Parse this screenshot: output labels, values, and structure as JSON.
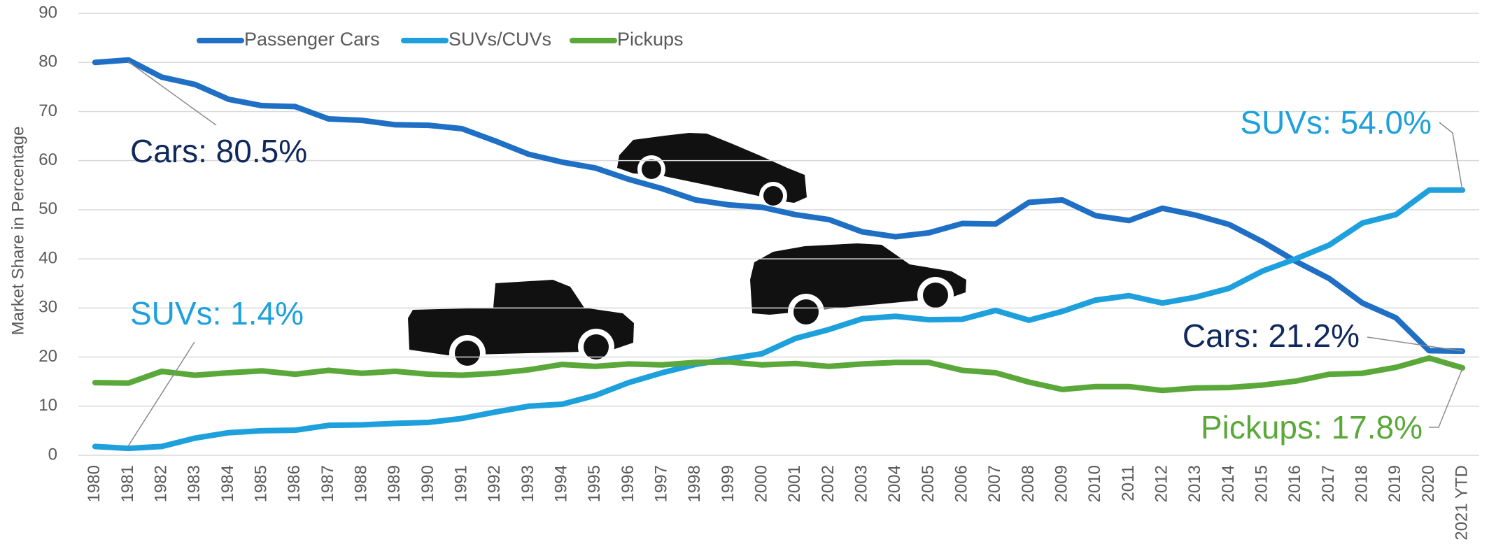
{
  "chart_data": {
    "type": "line",
    "y_label": "Market Share in Percentage",
    "categories": [
      "1980",
      "1981",
      "1982",
      "1983",
      "1984",
      "1985",
      "1986",
      "1987",
      "1988",
      "1989",
      "1990",
      "1991",
      "1992",
      "1993",
      "1994",
      "1995",
      "1996",
      "1997",
      "1998",
      "1999",
      "2000",
      "2001",
      "2002",
      "2003",
      "2004",
      "2005",
      "2006",
      "2007",
      "2008",
      "2009",
      "2010",
      "2011",
      "2012",
      "2013",
      "2014",
      "2015",
      "2016",
      "2017",
      "2018",
      "2019",
      "2020",
      "2021 YTD"
    ],
    "series": [
      {
        "name": "Passenger Cars",
        "color": "#1f6fc5",
        "values": [
          80,
          80.5,
          77,
          75.5,
          72.5,
          71.2,
          71,
          68.5,
          68.2,
          67.3,
          67.2,
          66.5,
          64,
          61.3,
          59.7,
          58.5,
          56.2,
          54.3,
          52,
          51,
          50.5,
          49,
          48,
          45.5,
          44.5,
          45.3,
          47.2,
          47.1,
          51.5,
          52,
          48.8,
          47.8,
          50.3,
          48.9,
          47,
          43.5,
          39.5,
          36,
          31,
          28,
          21.3,
          21.2
        ]
      },
      {
        "name": "SUVs/CUVs",
        "color": "#1ea0dc",
        "values": [
          1.8,
          1.4,
          1.8,
          3.5,
          4.6,
          5,
          5.1,
          6.1,
          6.2,
          6.5,
          6.7,
          7.5,
          8.8,
          10,
          10.4,
          12.2,
          14.8,
          16.8,
          18.5,
          19.6,
          20.7,
          23.8,
          25.6,
          27.8,
          28.3,
          27.6,
          27.7,
          29.5,
          27.5,
          29.3,
          31.6,
          32.5,
          31,
          32.2,
          34,
          37.5,
          40,
          42.8,
          47.3,
          49,
          54,
          54.0
        ]
      },
      {
        "name": "Pickups",
        "color": "#5aa83a",
        "values": [
          14.8,
          14.7,
          17.1,
          16.3,
          16.8,
          17.2,
          16.5,
          17.3,
          16.7,
          17.1,
          16.5,
          16.3,
          16.7,
          17.4,
          18.5,
          18.1,
          18.6,
          18.4,
          18.9,
          19,
          18.4,
          18.7,
          18.1,
          18.6,
          18.9,
          18.9,
          17.3,
          16.8,
          14.9,
          13.4,
          14,
          14,
          13.2,
          13.7,
          13.8,
          14.3,
          15.1,
          16.5,
          16.7,
          17.9,
          19.8,
          17.8
        ]
      }
    ],
    "annotations": [
      {
        "text": "Cars: 80.5%",
        "color": "#10295c"
      },
      {
        "text": "SUVs: 1.4%",
        "color": "#1ea0dc"
      },
      {
        "text": "SUVs: 54.0%",
        "color": "#1ea0dc"
      },
      {
        "text": "Cars: 21.2%",
        "color": "#10295c"
      },
      {
        "text": "Pickups: 17.8%",
        "color": "#5aa83a"
      }
    ],
    "ylim": [
      0,
      90
    ],
    "yticks": [
      0,
      10,
      20,
      30,
      40,
      50,
      60,
      70,
      80,
      90
    ],
    "grid": true,
    "legend": "top-left"
  }
}
